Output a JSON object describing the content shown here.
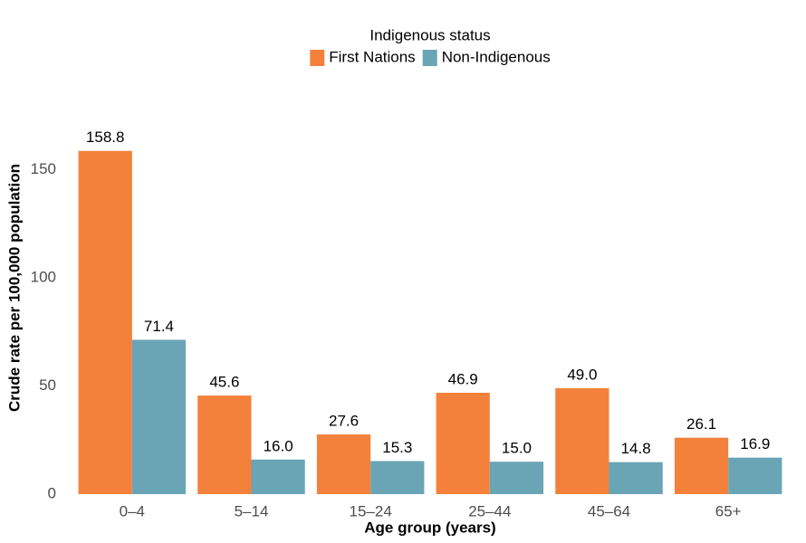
{
  "chart_data": {
    "type": "bar",
    "legend_title": "Indigenous status",
    "legend": "top",
    "xlabel": "Age group (years)",
    "ylabel": "Crude rate per 100,000 population",
    "categories": [
      "0–4",
      "5–14",
      "15–24",
      "25–44",
      "45–64",
      "65+"
    ],
    "series": [
      {
        "name": "First Nations",
        "color": "#f4813b",
        "values": [
          158.8,
          45.6,
          27.6,
          46.9,
          49.0,
          26.1
        ],
        "value_labels": [
          "158.8",
          "45.6",
          "27.6",
          "46.9",
          "49.0",
          "26.1"
        ]
      },
      {
        "name": "Non-Indigenous",
        "color": "#6aa5b5",
        "values": [
          71.4,
          16.0,
          15.3,
          15.0,
          14.8,
          16.9
        ],
        "value_labels": [
          "71.4",
          "16.0",
          "15.3",
          "15.0",
          "14.8",
          "16.9"
        ]
      }
    ],
    "ylim": [
      0,
      170
    ],
    "yticks": [
      0,
      50,
      100,
      150
    ],
    "grid": false
  }
}
